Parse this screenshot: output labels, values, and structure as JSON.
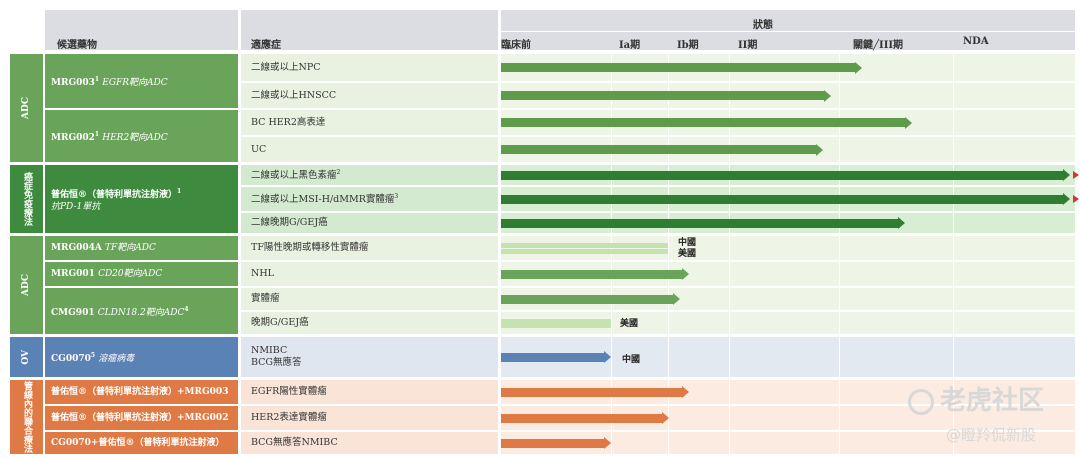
{
  "header": {
    "candidate_label": "候選藥物",
    "indication_label": "適應症",
    "status_label": "狀態",
    "phases": [
      "臨床前",
      "Ia期",
      "Ib期",
      "II期",
      "關鍵╱III期",
      "NDA"
    ]
  },
  "categories": {
    "adc1": "ADC",
    "immuno": "癌症免疫療法",
    "adc2": "ADC",
    "ov": "OV",
    "combo": "管線內的聯合療法"
  },
  "candidates": {
    "mrg003": {
      "name": "MRG003",
      "sup": "1",
      "target": "EGFR靶向ADC"
    },
    "mrg002": {
      "name": "MRG002",
      "sup": "1",
      "target": "HER2靶向ADC"
    },
    "puyouheng": {
      "name": "普佑恒®（普特利單抗注射液）",
      "sup": "1",
      "target": "抗PD-1單抗"
    },
    "mrg004a": {
      "name": "MRG004A",
      "target": "TF靶向ADC"
    },
    "mrg001": {
      "name": "MRG001",
      "target": "CD20靶向ADC"
    },
    "cmg901": {
      "name": "CMG901",
      "target": "CLDN18.2靶向ADC",
      "sup": "4"
    },
    "cg0070": {
      "name": "CG0070",
      "sup": "5",
      "target": "溶瘤病毒"
    },
    "combo1": {
      "name": "普佑恒®（普特利單抗注射液）+MRG003"
    },
    "combo2": {
      "name": "普佑恒®（普特利單抗注射液）+MRG002"
    },
    "combo3": {
      "name": "CG0070+普佑恒®（普特利單抗注射液）"
    }
  },
  "indications": [
    {
      "text": "二線或以上NPC"
    },
    {
      "text": "二線或以上HNSCC"
    },
    {
      "text": "BC HER2高表達"
    },
    {
      "text": "UC"
    },
    {
      "text": "二線或以上黑色素瘤",
      "sup": "2"
    },
    {
      "text": "二線或以上MSI-H/dMMR實體瘤",
      "sup": "3"
    },
    {
      "text": "二線晚期G/GEJ癌"
    },
    {
      "text": "TF陽性晚期或轉移性實體瘤"
    },
    {
      "text": "NHL"
    },
    {
      "text": "實體瘤"
    },
    {
      "text": "晚期G/GEJ癌"
    },
    {
      "text": "NMIBC",
      "text2": "BCG無應答"
    },
    {
      "text": "EGFR陽性實體瘤"
    },
    {
      "text": "HER2表達實體瘤"
    },
    {
      "text": "BCG無應答NMIBC"
    }
  ],
  "progress": [
    {
      "phase_position": 4.2,
      "color": "#5e9c4c",
      "arrow": true
    },
    {
      "phase_position": 3.93,
      "color": "#5e9c4c",
      "arrow": true
    },
    {
      "phase_position": 4.64,
      "color": "#5e9c4c",
      "arrow": true
    },
    {
      "phase_position": 3.85,
      "color": "#5e9c4c",
      "arrow": true
    },
    {
      "phase_position": 6.0,
      "color": "#2e7d32",
      "arrow": true,
      "flag": true
    },
    {
      "phase_position": 6.0,
      "color": "#2e7d32",
      "arrow": true,
      "flag": true
    },
    {
      "phase_position": 4.58,
      "color": "#2e7d32",
      "arrow": true
    },
    {
      "phase_position": 2.0,
      "color": "#c5e3b0",
      "arrow": false,
      "double": true
    },
    {
      "phase_position": 2.34,
      "color": "#6aa35a",
      "arrow": true
    },
    {
      "phase_position": 2.2,
      "color": "#6aa35a",
      "arrow": true
    },
    {
      "phase_position": 1.0,
      "color": "#c5e3b0",
      "arrow": false
    },
    {
      "phase_position": 1.0,
      "color": "#5b82b5",
      "arrow": true
    },
    {
      "phase_position": 2.34,
      "color": "#e07a44",
      "arrow": true
    },
    {
      "phase_position": 2.02,
      "color": "#e07a44",
      "arrow": true
    },
    {
      "phase_position": 1.0,
      "color": "#e07a44",
      "arrow": true
    }
  ],
  "region_notes": {
    "mrg004a_china": "中國",
    "mrg004a_us": "美國",
    "cmg901_us": "美國",
    "cg0070_china": "中國"
  },
  "watermark": {
    "brand": "老虎社区",
    "handle": "@瞪羚侃新股"
  },
  "colors": {
    "adc_green": "#6aa35a",
    "immuno_green": "#3e8a3e",
    "ov_blue": "#5b82b5",
    "combo_orange": "#e07a44",
    "row_light_green": "#e9f2e1",
    "row_mid_green": "#d3ead0",
    "row_blue": "#dfe6ef",
    "row_orange": "#f9e4d7"
  }
}
